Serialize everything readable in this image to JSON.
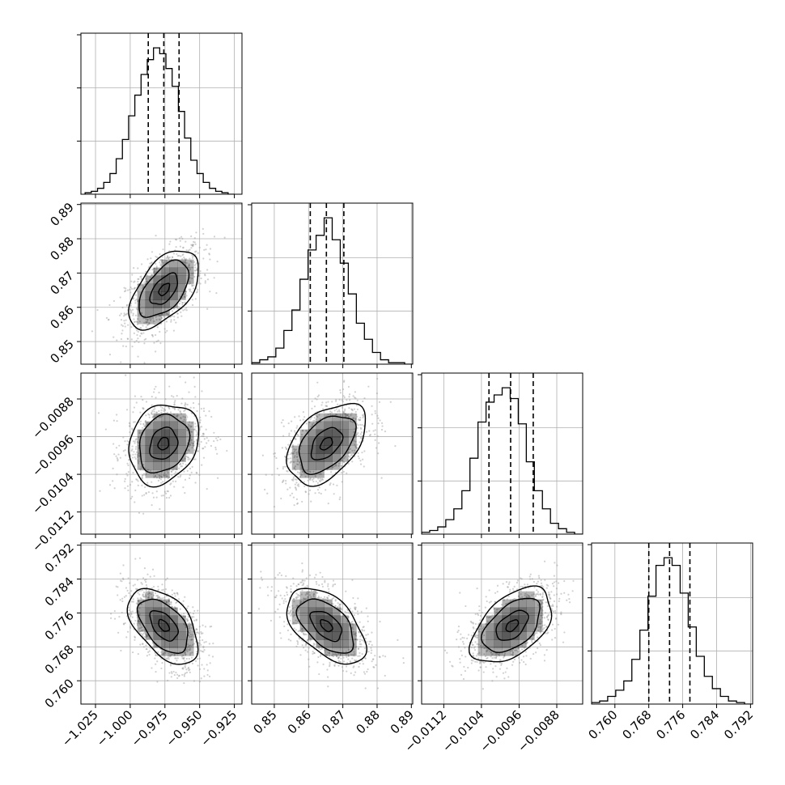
{
  "chart_data": {
    "type": "corner",
    "parameters": [
      {
        "ticks": [
          -1.025,
          -1.0,
          -0.975,
          -0.95,
          -0.925
        ],
        "tick_labels": [
          "−1.025",
          "−1.000",
          "−0.975",
          "−0.950",
          "−0.925"
        ],
        "range": [
          -1.0355,
          -0.9195
        ],
        "quantiles": [
          -0.987,
          -0.9758,
          -0.9648
        ],
        "hist_edges_range": [
          -1.0325,
          -0.925
        ],
        "hist_counts": [
          1,
          2,
          4,
          8,
          14,
          24,
          37,
          53,
          67,
          81,
          91,
          99,
          95,
          85,
          73,
          56,
          38,
          23,
          14,
          8,
          4,
          2,
          1,
          0
        ]
      },
      {
        "ticks": [
          0.85,
          0.86,
          0.87,
          0.88,
          0.89
        ],
        "tick_labels": [
          "0.85",
          "0.86",
          "0.87",
          "0.88",
          "0.89"
        ],
        "range": [
          0.8434,
          0.8904
        ],
        "quantiles": [
          0.8605,
          0.8652,
          0.8703
        ],
        "hist_edges_range": [
          0.8434,
          0.8904
        ],
        "hist_counts": [
          1,
          3,
          5,
          11,
          23,
          37,
          58,
          78,
          88,
          100,
          85,
          69,
          48,
          28,
          17,
          8,
          3,
          1,
          1,
          0
        ]
      },
      {
        "ticks": [
          -0.0112,
          -0.0104,
          -0.0096,
          -0.0088
        ],
        "tick_labels": [
          "−0.0112",
          "−0.0104",
          "−0.0096",
          "−0.0088"
        ],
        "range": [
          -0.01167,
          -0.00825
        ],
        "quantiles": [
          -0.01024,
          -0.00978,
          -0.0093
        ],
        "hist_edges_range": [
          -0.01167,
          -0.00825
        ],
        "hist_counts": [
          1,
          2,
          4,
          8,
          14,
          24,
          42,
          62,
          73,
          77,
          81,
          75,
          61,
          40,
          24,
          14,
          6,
          3,
          1,
          0
        ]
      },
      {
        "ticks": [
          0.76,
          0.768,
          0.776,
          0.784,
          0.792
        ],
        "tick_labels": [
          "0.760",
          "0.768",
          "0.776",
          "0.784",
          "0.792"
        ],
        "range": [
          0.7545,
          0.7925
        ],
        "quantiles": [
          0.768,
          0.7729,
          0.7777
        ],
        "hist_edges_range": [
          0.7545,
          0.7925
        ],
        "hist_counts": [
          1,
          2,
          5,
          9,
          15,
          29,
          48,
          70,
          90,
          95,
          90,
          72,
          50,
          31,
          18,
          10,
          5,
          2,
          1,
          0
        ]
      }
    ],
    "pairs": [
      {
        "row": 1,
        "col": 0,
        "center": [
          -0.9755,
          0.8652
        ],
        "sigma": [
          0.0138,
          0.0063
        ],
        "rho": 0.55
      },
      {
        "row": 2,
        "col": 0,
        "center": [
          -0.976,
          -0.00975
        ],
        "sigma": [
          0.0138,
          0.00047
        ],
        "rho": 0.2
      },
      {
        "row": 2,
        "col": 1,
        "center": [
          0.8652,
          -0.00975
        ],
        "sigma": [
          0.0063,
          0.00047
        ],
        "rho": 0.45
      },
      {
        "row": 3,
        "col": 0,
        "center": [
          -0.9758,
          0.773
        ],
        "sigma": [
          0.0138,
          0.0049
        ],
        "rho": -0.5
      },
      {
        "row": 3,
        "col": 1,
        "center": [
          0.8652,
          0.773
        ],
        "sigma": [
          0.0063,
          0.0049
        ],
        "rho": -0.52
      },
      {
        "row": 3,
        "col": 2,
        "center": [
          -0.00975,
          0.773
        ],
        "sigma": [
          0.00047,
          0.0049
        ],
        "rho": 0.5
      }
    ],
    "grid": true,
    "colors": {
      "line": "#000000",
      "grid": "#b0b0b0",
      "points": "#9a9a9a",
      "density": "#000000"
    }
  }
}
